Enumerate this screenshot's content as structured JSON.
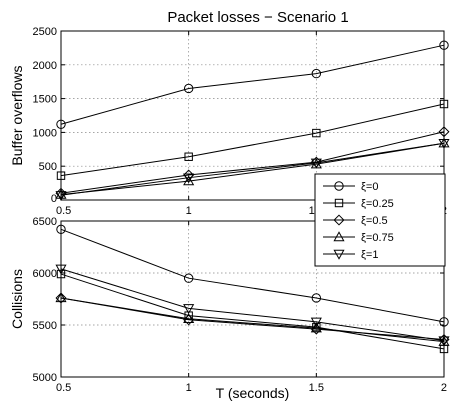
{
  "figure_title": "Packet losses − Scenario 1",
  "chart_data": [
    {
      "type": "line",
      "title": "Packet losses − Scenario 1",
      "xlabel": "",
      "ylabel": "Buffer overflows",
      "x": [
        0.5,
        1,
        1.5,
        2
      ],
      "xlim": [
        0.5,
        2
      ],
      "ylim": [
        0,
        2500
      ],
      "xticks": [
        "0.5",
        "1",
        "1.5",
        "2"
      ],
      "yticks": [
        "0",
        "500",
        "1000",
        "1500",
        "2000",
        "2500"
      ],
      "grid": true,
      "legend": "right",
      "series": [
        {
          "name": "ξ=0",
          "marker": "circle",
          "values": [
            1120,
            1650,
            1870,
            2290
          ]
        },
        {
          "name": "ξ=0.25",
          "marker": "square",
          "values": [
            360,
            640,
            990,
            1420
          ]
        },
        {
          "name": "ξ=0.5",
          "marker": "diamond",
          "values": [
            100,
            370,
            560,
            1010
          ]
        },
        {
          "name": "ξ=0.75",
          "marker": "triangle-up",
          "values": [
            80,
            280,
            530,
            840
          ]
        },
        {
          "name": "ξ=1",
          "marker": "triangle-down",
          "values": [
            70,
            330,
            550,
            840
          ]
        }
      ]
    },
    {
      "type": "line",
      "title": "",
      "xlabel": "T (seconds)",
      "ylabel": "Collisions",
      "x": [
        0.5,
        1,
        1.5,
        2
      ],
      "xlim": [
        0.5,
        2
      ],
      "ylim": [
        5000,
        6500
      ],
      "xticks": [
        "0.5",
        "1",
        "1.5",
        "2"
      ],
      "yticks": [
        "5000",
        "5500",
        "6000",
        "6500"
      ],
      "grid": true,
      "legend": "top-right",
      "series": [
        {
          "name": "ξ=0",
          "marker": "circle",
          "values": [
            6420,
            5950,
            5760,
            5530
          ]
        },
        {
          "name": "ξ=0.25",
          "marker": "square",
          "values": [
            5990,
            5590,
            5480,
            5270
          ]
        },
        {
          "name": "ξ=0.5",
          "marker": "diamond",
          "values": [
            5760,
            5550,
            5460,
            5360
          ]
        },
        {
          "name": "ξ=0.75",
          "marker": "triangle-up",
          "values": [
            5760,
            5560,
            5470,
            5340
          ]
        },
        {
          "name": "ξ=1",
          "marker": "triangle-down",
          "values": [
            6040,
            5660,
            5530,
            5350
          ]
        }
      ]
    }
  ]
}
